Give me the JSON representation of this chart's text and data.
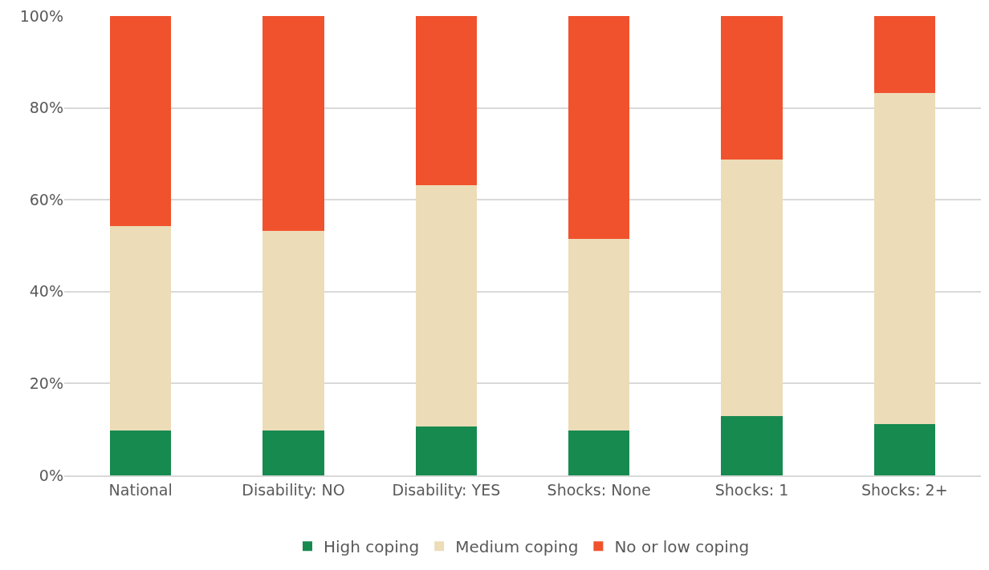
{
  "chart_data": {
    "type": "bar",
    "stacked": true,
    "categories": [
      "National",
      "Disability: NO",
      "Disability: YES",
      "Shocks: None",
      "Shocks: 1",
      "Shocks: 2+"
    ],
    "series": [
      {
        "name": "High coping",
        "color": "#178a50",
        "values": [
          9.7,
          9.7,
          10.7,
          9.7,
          13.0,
          11.2
        ]
      },
      {
        "name": "Medium coping",
        "color": "#ecdcb8",
        "values": [
          44.5,
          43.5,
          52.5,
          41.8,
          55.7,
          72.0
        ]
      },
      {
        "name": "No or low coping",
        "color": "#f0522d",
        "values": [
          45.8,
          46.8,
          36.8,
          48.5,
          31.3,
          16.8
        ]
      }
    ],
    "ylim": [
      0,
      100
    ],
    "yticks": [
      {
        "value": 0,
        "label": "0%"
      },
      {
        "value": 20,
        "label": "20%"
      },
      {
        "value": 40,
        "label": "40%"
      },
      {
        "value": 60,
        "label": "60%"
      },
      {
        "value": 80,
        "label": "80%"
      },
      {
        "value": 100,
        "label": "100%"
      }
    ],
    "grid": "y",
    "legend": "bottom"
  }
}
